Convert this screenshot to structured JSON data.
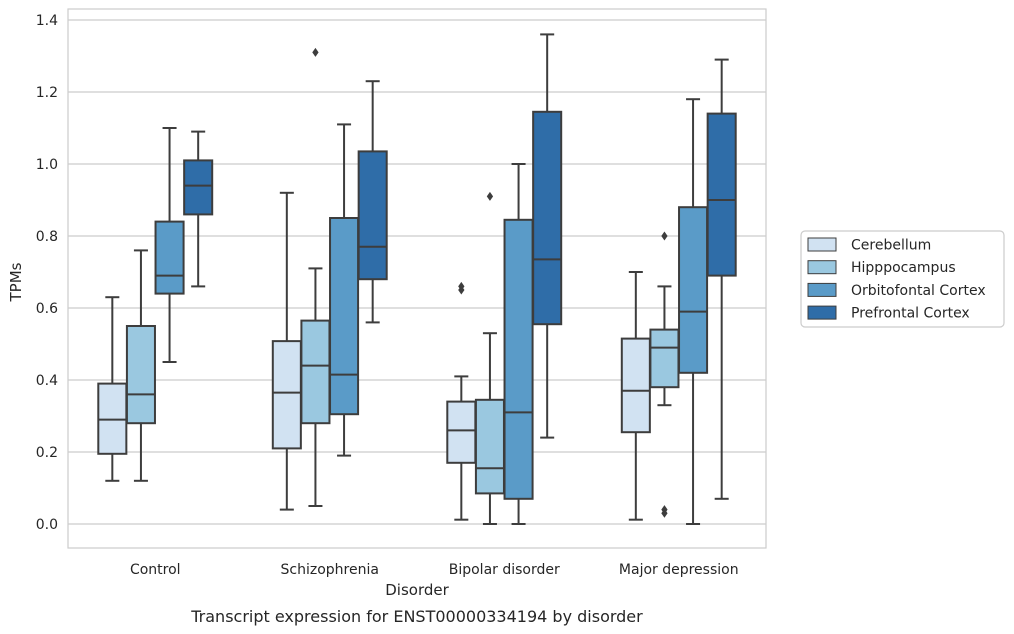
{
  "chart_data": {
    "type": "box",
    "caption": "Transcript expression for ENST00000334194 by disorder",
    "xlabel": "Disorder",
    "ylabel": "TPMs",
    "ylim": [
      -0.065,
      1.43
    ],
    "yticks": [
      0.0,
      0.2,
      0.4,
      0.6,
      0.8,
      1.0,
      1.2,
      1.4
    ],
    "ytick_labels": [
      "0.0",
      "0.2",
      "0.4",
      "0.6",
      "0.8",
      "1.0",
      "1.2",
      "1.4"
    ],
    "grid": "horizontal",
    "legend_position": "right",
    "categories": [
      "Control",
      "Schizophrenia",
      "Bipolar disorder",
      "Major depression"
    ],
    "series": [
      {
        "name": "Cerebellum",
        "color": "#d1e2f2",
        "boxes": [
          {
            "whislo": 0.12,
            "q1": 0.195,
            "med": 0.29,
            "q3": 0.39,
            "whishi": 0.63,
            "fliers": []
          },
          {
            "whislo": 0.04,
            "q1": 0.21,
            "med": 0.365,
            "q3": 0.508,
            "whishi": 0.92,
            "fliers": []
          },
          {
            "whislo": 0.012,
            "q1": 0.17,
            "med": 0.26,
            "q3": 0.34,
            "whishi": 0.41,
            "fliers": [
              0.65,
              0.66
            ]
          },
          {
            "whislo": 0.012,
            "q1": 0.255,
            "med": 0.37,
            "q3": 0.515,
            "whishi": 0.7,
            "fliers": []
          }
        ]
      },
      {
        "name": "Hipppocampus",
        "color": "#9ac8e0",
        "boxes": [
          {
            "whislo": 0.12,
            "q1": 0.28,
            "med": 0.36,
            "q3": 0.55,
            "whishi": 0.76,
            "fliers": []
          },
          {
            "whislo": 0.05,
            "q1": 0.28,
            "med": 0.44,
            "q3": 0.565,
            "whishi": 0.71,
            "fliers": [
              1.31
            ]
          },
          {
            "whislo": 0.0,
            "q1": 0.085,
            "med": 0.155,
            "q3": 0.345,
            "whishi": 0.53,
            "fliers": [
              0.91
            ]
          },
          {
            "whislo": 0.33,
            "q1": 0.38,
            "med": 0.49,
            "q3": 0.54,
            "whishi": 0.66,
            "fliers": [
              0.8,
              0.04,
              0.03
            ]
          }
        ]
      },
      {
        "name": "Orbitofontal Cortex",
        "color": "#5a9bc8",
        "boxes": [
          {
            "whislo": 0.45,
            "q1": 0.64,
            "med": 0.69,
            "q3": 0.84,
            "whishi": 1.1,
            "fliers": []
          },
          {
            "whislo": 0.19,
            "q1": 0.305,
            "med": 0.415,
            "q3": 0.85,
            "whishi": 1.11,
            "fliers": []
          },
          {
            "whislo": 0.0,
            "q1": 0.07,
            "med": 0.31,
            "q3": 0.845,
            "whishi": 1.0,
            "fliers": []
          },
          {
            "whislo": 0.0,
            "q1": 0.42,
            "med": 0.59,
            "q3": 0.88,
            "whishi": 1.18,
            "fliers": []
          }
        ]
      },
      {
        "name": "Prefrontal Cortex",
        "color": "#2f6da8",
        "boxes": [
          {
            "whislo": 0.66,
            "q1": 0.86,
            "med": 0.94,
            "q3": 1.01,
            "whishi": 1.09,
            "fliers": []
          },
          {
            "whislo": 0.56,
            "q1": 0.68,
            "med": 0.77,
            "q3": 1.035,
            "whishi": 1.23,
            "fliers": []
          },
          {
            "whislo": 0.24,
            "q1": 0.555,
            "med": 0.735,
            "q3": 1.145,
            "whishi": 1.36,
            "fliers": []
          },
          {
            "whislo": 0.07,
            "q1": 0.69,
            "med": 0.9,
            "q3": 1.14,
            "whishi": 1.29,
            "fliers": []
          }
        ]
      }
    ]
  }
}
